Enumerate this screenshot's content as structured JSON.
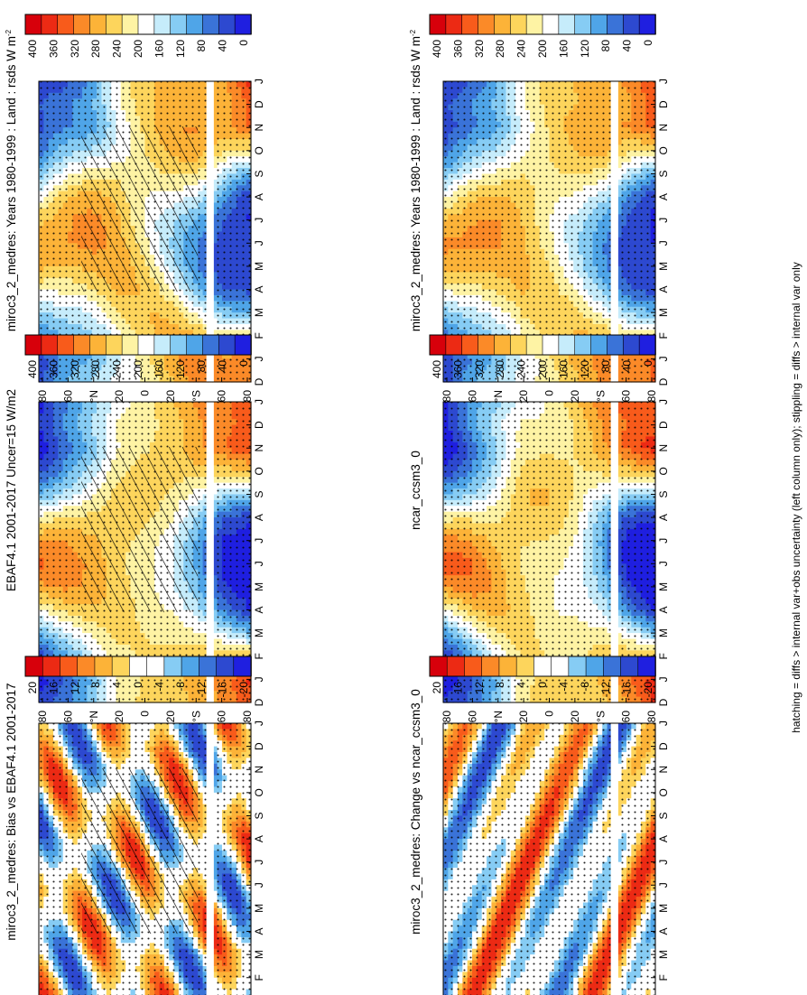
{
  "footnote": "hatching = diffs > internal var+obs uncertainty (left column only); stippling = diffs > internal var only",
  "colors": {
    "abs": [
      "#d7000b",
      "#ec2a14",
      "#f85b1b",
      "#fb8a28",
      "#fcb338",
      "#fdd55c",
      "#fef3a4",
      "#ffffff",
      "#c6ecfb",
      "#86ccf4",
      "#4fa5e8",
      "#3a73d8",
      "#2d49d0",
      "#1f1fe0"
    ],
    "diff": [
      "#d7000b",
      "#ec2a14",
      "#f85b1b",
      "#fb8a28",
      "#fcb338",
      "#fdd55c",
      "#ffffff",
      "#ffffff",
      "#86ccf4",
      "#4fa5e8",
      "#3a73d8",
      "#2d49d0",
      "#1f1fe0"
    ]
  },
  "axes": {
    "lat_labels": [
      "80",
      "60",
      "°N",
      "20",
      "0",
      "20",
      "°S",
      "60",
      "80"
    ],
    "month_labels": [
      "D",
      "J",
      "F",
      "M",
      "A",
      "M",
      "J",
      "J",
      "A",
      "S",
      "O",
      "N",
      "D",
      "J"
    ]
  },
  "colorbars": {
    "abs": [
      "400",
      "360",
      "320",
      "280",
      "240",
      "200",
      "160",
      "120",
      "80",
      "40",
      "0"
    ],
    "diff": [
      "20",
      "16",
      "12",
      "8",
      "4",
      "0",
      "-4",
      "-8",
      "-12",
      "-16",
      "-20"
    ]
  },
  "panels": [
    {
      "title": "miroc3_2_medres: Years 1980-1999 : Land : rsds W m",
      "sup": "-2",
      "kind": "abs",
      "hatch": "model"
    },
    {
      "title": "miroc3_2_medres: Years 1980-1999 : Land : rsds W m",
      "sup": "-2",
      "kind": "abs",
      "hatch": "stipple"
    },
    {
      "title": "EBAF4.1 2001-2017 Uncer=15 W/m2",
      "sup": "",
      "kind": "abs",
      "hatch": "obs"
    },
    {
      "title": "ncar_ccsm3_0",
      "sup": "",
      "kind": "abs",
      "hatch": "stipple"
    },
    {
      "title": "miroc3_2_medres: Bias vs EBAF4.1 2001-2017",
      "sup": "",
      "kind": "diff",
      "hatch": "bias"
    },
    {
      "title": "miroc3_2_medres: Change vs ncar_ccsm3_0",
      "sup": "",
      "kind": "diff",
      "hatch": "stipple"
    }
  ],
  "chart_data": {
    "type": "heatmap",
    "variable": "rsds",
    "units": "W m-2",
    "x": "month (D J F M A M J J A S O N D J)",
    "y": "latitude (80N to 80S)",
    "abs_range": [
      0,
      400
    ],
    "diff_range": [
      -20,
      20
    ],
    "lat_rows": [
      "80N",
      "60N",
      "40N",
      "20N",
      "0",
      "20S",
      "40S",
      "60S",
      "80S"
    ],
    "month_cols": [
      "D",
      "J",
      "F",
      "M",
      "A",
      "M",
      "J",
      "J",
      "A",
      "S",
      "O",
      "N",
      "D",
      "J"
    ],
    "zonal_mean_rsds_obs": [
      [
        25,
        5,
        40,
        110,
        200,
        280,
        320,
        280,
        200,
        110,
        40,
        5,
        25,
        5
      ],
      [
        80,
        60,
        100,
        160,
        230,
        290,
        310,
        290,
        240,
        160,
        100,
        60,
        80,
        60
      ],
      [
        130,
        110,
        150,
        200,
        250,
        280,
        290,
        280,
        250,
        200,
        150,
        110,
        130,
        110
      ],
      [
        200,
        190,
        210,
        240,
        260,
        260,
        250,
        250,
        250,
        240,
        210,
        190,
        200,
        190
      ],
      [
        230,
        230,
        240,
        240,
        230,
        220,
        210,
        210,
        230,
        240,
        240,
        230,
        230,
        230
      ],
      [
        250,
        260,
        250,
        230,
        200,
        170,
        160,
        170,
        200,
        230,
        250,
        260,
        250,
        260
      ],
      [
        280,
        290,
        260,
        200,
        140,
        100,
        90,
        100,
        140,
        200,
        260,
        290,
        280,
        290
      ],
      [
        300,
        310,
        240,
        150,
        60,
        20,
        10,
        20,
        60,
        150,
        240,
        310,
        300,
        310
      ],
      [
        340,
        350,
        250,
        110,
        20,
        0,
        0,
        0,
        20,
        110,
        250,
        350,
        340,
        350
      ]
    ]
  }
}
